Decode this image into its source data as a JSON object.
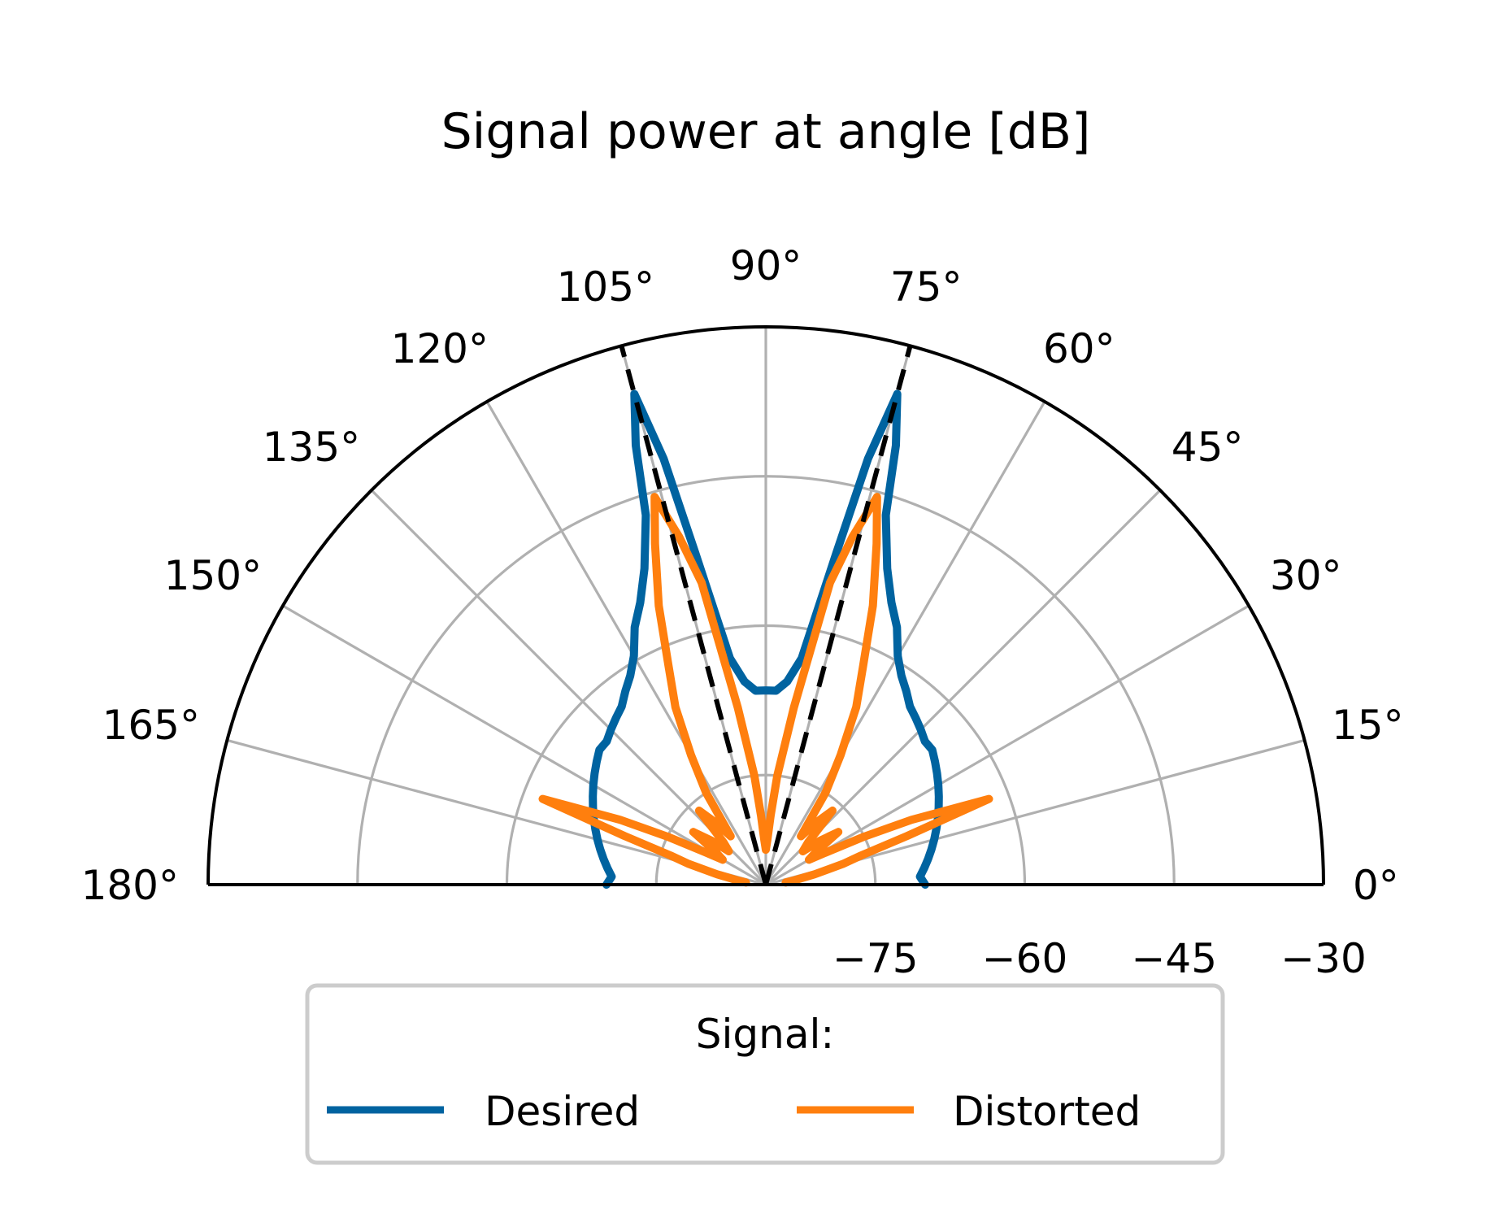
{
  "chart_data": {
    "type": "line",
    "projection": "polar",
    "title": "Signal power at angle [dB]",
    "theta_range_deg": [
      0,
      180
    ],
    "r_range": [
      -86,
      -30
    ],
    "theta_ticks": [
      "0°",
      "15°",
      "30°",
      "45°",
      "60°",
      "75°",
      "90°",
      "105°",
      "120°",
      "135°",
      "150°",
      "165°",
      "180°"
    ],
    "r_ticks": [
      "−75",
      "−60",
      "−45",
      "−30"
    ],
    "r_tick_values": [
      -75,
      -60,
      -45,
      -30
    ],
    "grid": true,
    "legend": {
      "title": "Signal:",
      "placement": "bottom",
      "entries": [
        "Desired",
        "Distorted"
      ]
    },
    "reference_lines": {
      "style": "black dashed",
      "angles_deg": [
        75,
        105
      ]
    },
    "series": [
      {
        "name": "Desired",
        "color": "#0063a0",
        "theta_deg": [
          0,
          3,
          6,
          9,
          12,
          15,
          18,
          21,
          24,
          27,
          30,
          33,
          36,
          39,
          42,
          45,
          48,
          51,
          54,
          57,
          60,
          63,
          66,
          69,
          72,
          73.5,
          75,
          76.5,
          78,
          81,
          84,
          87,
          90,
          93,
          96,
          99,
          102,
          103.5,
          105,
          106.5,
          108,
          111,
          114,
          117,
          120,
          123,
          126,
          129,
          132,
          135,
          138,
          141,
          144,
          147,
          150,
          153,
          156,
          159,
          162,
          165,
          168,
          171,
          174,
          177,
          180
        ],
        "r_db": [
          -70,
          -70.5,
          -70,
          -69.5,
          -69,
          -68.5,
          -68,
          -67.5,
          -67,
          -66.5,
          -66,
          -65.5,
          -65,
          -64.5,
          -64.5,
          -64,
          -63.5,
          -63,
          -62,
          -61,
          -59.5,
          -57,
          -55,
          -52,
          -47,
          -40,
          -35,
          -42,
          -52,
          -63,
          -65.5,
          -66.5,
          -66.5,
          -66.5,
          -65.5,
          -63,
          -52,
          -42,
          -35,
          -40,
          -47,
          -52,
          -55,
          -57,
          -59.5,
          -61,
          -62,
          -63,
          -63.5,
          -64,
          -64.5,
          -64.5,
          -65,
          -65.5,
          -66,
          -66.5,
          -67,
          -67.5,
          -68,
          -68.5,
          -69,
          -69.5,
          -70,
          -70.5,
          -70
        ]
      },
      {
        "name": "Distorted",
        "color": "#ff7f0e",
        "theta_deg": [
          6,
          9,
          12,
          15,
          17,
          19,
          21,
          24,
          26,
          28,
          30,
          33,
          36,
          39,
          42,
          45,
          48,
          51,
          54,
          57,
          60,
          63,
          66,
          69,
          72,
          74,
          76,
          78,
          81,
          84,
          86,
          88,
          90,
          92,
          94,
          96,
          99,
          102,
          104,
          106,
          108,
          111,
          114,
          117,
          120,
          123,
          126,
          129,
          132,
          135,
          138,
          141,
          144,
          147,
          150,
          152,
          154,
          156,
          159,
          161,
          163,
          165,
          168,
          171,
          174
        ],
        "r_db": [
          -84,
          -83,
          -81,
          -78,
          -76,
          -71,
          -62,
          -70,
          -75,
          -79,
          -81,
          -80,
          -77,
          -79,
          -81,
          -80,
          -76,
          -78,
          -80,
          -75,
          -71,
          -66,
          -62,
          -56,
          -50,
          -45.5,
          -50,
          -55,
          -68,
          -75,
          -79,
          -81.5,
          -82.5,
          -81.5,
          -79,
          -75,
          -68,
          -55,
          -50,
          -45.5,
          -50,
          -56,
          -62,
          -66,
          -71,
          -75,
          -80,
          -78,
          -76,
          -80,
          -81,
          -79,
          -77,
          -80,
          -81,
          -79,
          -75,
          -70,
          -62,
          -71,
          -76,
          -78,
          -81,
          -83,
          -84
        ]
      }
    ]
  }
}
